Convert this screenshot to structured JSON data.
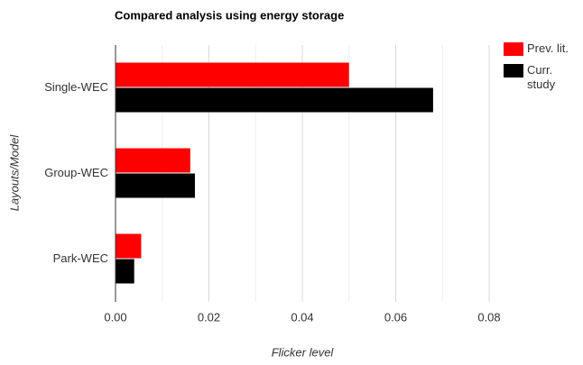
{
  "chart_data": {
    "type": "barh",
    "title": "Compared analysis using energy storage",
    "x_label": "Flicker level",
    "y_label": "Layouts/Model",
    "categories": [
      "Single-WEC",
      "Group-WEC",
      "Park-WEC"
    ],
    "series": [
      {
        "name": "Prev. lit.",
        "color": "#ff0000",
        "values": [
          0.05,
          0.016,
          0.0055
        ]
      },
      {
        "name": "Curr. study",
        "color": "#000000",
        "values": [
          0.068,
          0.017,
          0.004
        ]
      }
    ],
    "xlim": [
      0,
      0.08
    ],
    "xticks": [
      {
        "value": 0,
        "label": "0.00"
      },
      {
        "value": 0.02,
        "label": "0.02"
      },
      {
        "value": 0.04,
        "label": "0.04"
      },
      {
        "value": 0.06,
        "label": "0.06"
      },
      {
        "value": 0.08,
        "label": "0.08"
      }
    ],
    "x_minor_ticks": [
      0.01,
      0.03,
      0.05,
      0.07
    ],
    "grid": true,
    "legend": "right"
  }
}
